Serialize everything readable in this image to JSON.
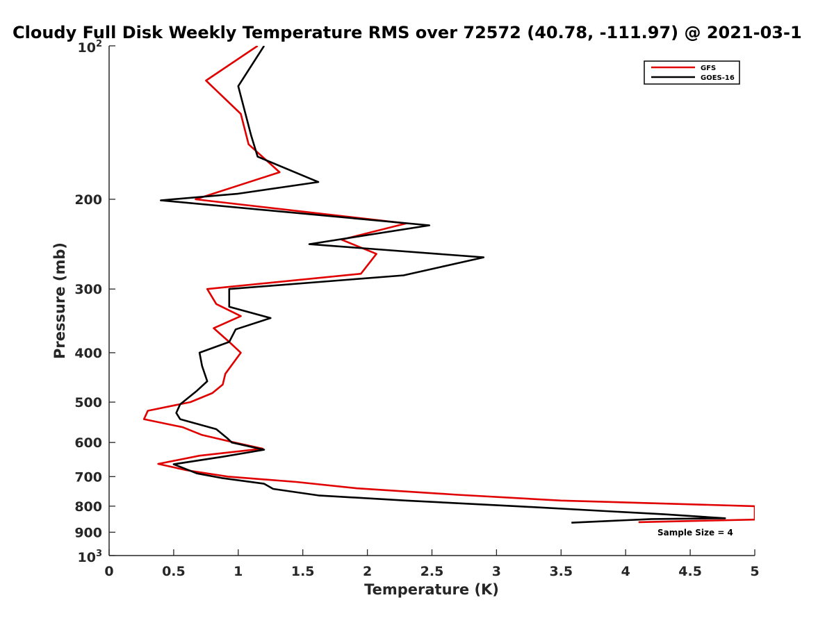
{
  "chart_data": {
    "type": "line",
    "title": "Cloudy Full Disk Weekly Temperature RMS over 72572 (40.78, -111.97) @ 2021-03-1",
    "xlabel": "Temperature (K)",
    "ylabel": "Pressure (mb)",
    "xlim": [
      0,
      5
    ],
    "ylim": [
      100,
      1000
    ],
    "y_scale": "log",
    "y_reversed": true,
    "xticks": [
      0,
      0.5,
      1,
      1.5,
      2,
      2.5,
      3,
      3.5,
      4,
      4.5,
      5
    ],
    "xtick_labels": [
      "0",
      "0.5",
      "1",
      "1.5",
      "2",
      "2.5",
      "3",
      "3.5",
      "4",
      "4.5",
      "5"
    ],
    "yticks": [
      200,
      300,
      400,
      500,
      600,
      700,
      800,
      900
    ],
    "ytick_labels": [
      "200",
      "300",
      "400",
      "500",
      "600",
      "700",
      "800",
      "900"
    ],
    "ytick_edge_top": {
      "base": "10",
      "exp": "2"
    },
    "ytick_edge_bottom": {
      "base": "10",
      "exp": "3"
    },
    "grid": false,
    "legend_position": "top-right",
    "annotation": "Sample Size = 4",
    "series": [
      {
        "name": "GFS",
        "color": "#e00000",
        "points": [
          [
            1.15,
            100
          ],
          [
            0.75,
            117
          ],
          [
            1.02,
            136
          ],
          [
            1.08,
            156
          ],
          [
            1.32,
            177
          ],
          [
            0.67,
            200
          ],
          [
            2.3,
            223
          ],
          [
            1.8,
            240
          ],
          [
            2.07,
            256
          ],
          [
            1.95,
            280
          ],
          [
            0.76,
            300
          ],
          [
            0.83,
            321
          ],
          [
            1.02,
            339
          ],
          [
            0.81,
            358
          ],
          [
            0.93,
            381
          ],
          [
            1.02,
            400
          ],
          [
            0.9,
            440
          ],
          [
            0.88,
            462
          ],
          [
            0.8,
            480
          ],
          [
            0.63,
            500
          ],
          [
            0.3,
            520
          ],
          [
            0.27,
            540
          ],
          [
            0.57,
            560
          ],
          [
            0.72,
            580
          ],
          [
            0.97,
            600
          ],
          [
            1.19,
            617
          ],
          [
            0.7,
            637
          ],
          [
            0.38,
            661
          ],
          [
            0.6,
            680
          ],
          [
            0.92,
            700
          ],
          [
            1.45,
            717
          ],
          [
            1.92,
            738
          ],
          [
            2.7,
            760
          ],
          [
            3.5,
            780
          ],
          [
            5.0,
            800
          ],
          [
            5.0,
            850
          ],
          [
            4.1,
            860
          ]
        ]
      },
      {
        "name": "GOES-16",
        "color": "#000000",
        "points": [
          [
            1.2,
            100
          ],
          [
            1.0,
            120
          ],
          [
            1.1,
            150
          ],
          [
            1.15,
            165
          ],
          [
            1.62,
            185
          ],
          [
            1.0,
            195
          ],
          [
            0.4,
            201
          ],
          [
            2.48,
            225
          ],
          [
            1.55,
            245
          ],
          [
            2.9,
            260
          ],
          [
            2.28,
            282
          ],
          [
            0.93,
            300
          ],
          [
            0.93,
            325
          ],
          [
            1.25,
            342
          ],
          [
            0.98,
            360
          ],
          [
            0.93,
            381
          ],
          [
            0.7,
            400
          ],
          [
            0.72,
            425
          ],
          [
            0.76,
            455
          ],
          [
            0.68,
            475
          ],
          [
            0.55,
            505
          ],
          [
            0.52,
            525
          ],
          [
            0.55,
            540
          ],
          [
            0.83,
            565
          ],
          [
            0.92,
            590
          ],
          [
            0.95,
            600
          ],
          [
            1.2,
            620
          ],
          [
            0.88,
            640
          ],
          [
            0.5,
            662
          ],
          [
            0.68,
            690
          ],
          [
            0.88,
            705
          ],
          [
            1.2,
            723
          ],
          [
            1.27,
            740
          ],
          [
            1.62,
            762
          ],
          [
            2.3,
            780
          ],
          [
            3.15,
            800
          ],
          [
            4.3,
            830
          ],
          [
            4.77,
            845
          ],
          [
            4.2,
            848
          ],
          [
            3.58,
            862
          ]
        ]
      }
    ]
  }
}
